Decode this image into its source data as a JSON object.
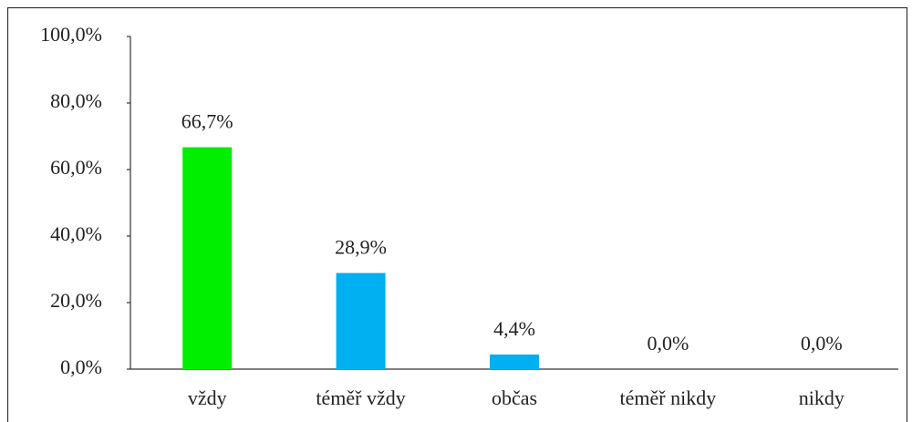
{
  "chart_data": {
    "type": "bar",
    "categories": [
      "vždy",
      "téměř vždy",
      "občas",
      "téměř nikdy",
      "nikdy"
    ],
    "values": [
      66.7,
      28.9,
      4.4,
      0,
      0
    ],
    "value_labels": [
      "66,7%",
      "28,9%",
      "4,4%",
      "0,0%",
      "0,0%"
    ],
    "colors": [
      "#00ee00",
      "#00b0f0",
      "#00b0f0",
      "#00b0f0",
      "#00b0f0"
    ],
    "ylim": [
      0,
      100
    ],
    "yticks": [
      {
        "value": 0,
        "label": "0,0%"
      },
      {
        "value": 20,
        "label": "20,0%"
      },
      {
        "value": 40,
        "label": "40,0%"
      },
      {
        "value": 60,
        "label": "60,0%"
      },
      {
        "value": 80,
        "label": "80,0%"
      },
      {
        "value": 100,
        "label": "100,0%"
      }
    ],
    "grid": false
  }
}
